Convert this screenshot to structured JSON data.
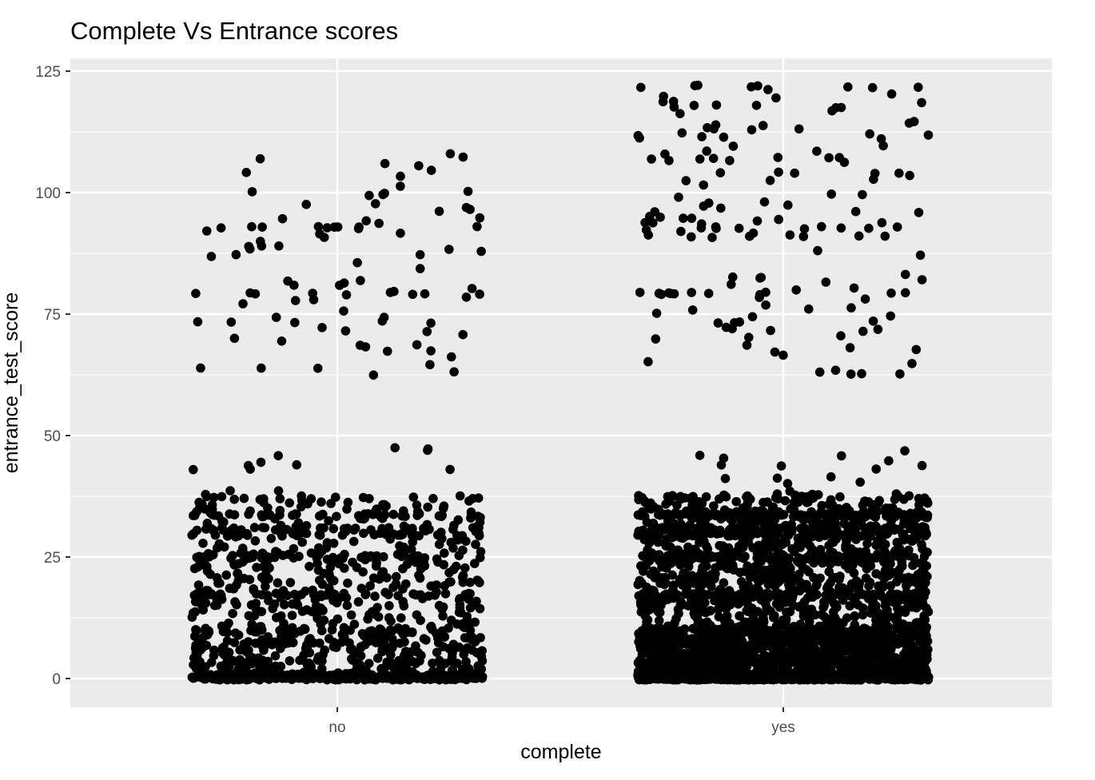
{
  "chart_data": {
    "type": "scatter",
    "title": "Complete Vs Entrance scores",
    "xlabel": "complete",
    "ylabel": "entrance_test_score",
    "categories": [
      "no",
      "yes"
    ],
    "y_ticks": [
      "0",
      "25",
      "50",
      "75",
      "100",
      "125"
    ],
    "ylim": [
      -6,
      127.5
    ],
    "jitter_width": 0.4,
    "grid": true,
    "legend": "none",
    "point_color": "#000000",
    "panel_color": "#ebebeb",
    "grid_color": "#ffffff",
    "series": [
      {
        "category": "no",
        "approx_count": 1400,
        "value_bands": [
          {
            "range": [
              0,
              10.5
            ],
            "approx_count": 720
          },
          {
            "range": [
              10.5,
              38
            ],
            "approx_count": 560
          },
          {
            "range": [
              38,
              48
            ],
            "approx_count": 12
          },
          {
            "range": [
              62,
              108
            ],
            "approx_count": 95
          }
        ],
        "repeated_values": [
          0,
          17.2,
          25,
          29.6,
          30.8,
          33.6,
          73.3,
          79.2,
          92.8
        ]
      },
      {
        "category": "yes",
        "approx_count": 3800,
        "value_bands": [
          {
            "range": [
              0,
              10.5
            ],
            "approx_count": 2300
          },
          {
            "range": [
              10.5,
              38
            ],
            "approx_count": 1350
          },
          {
            "range": [
              38,
              48
            ],
            "approx_count": 15
          },
          {
            "range": [
              62,
              122
            ],
            "approx_count": 160
          }
        ],
        "repeated_values": [
          0,
          17.2,
          25,
          29.6,
          30.8,
          33.6,
          62.8,
          73.3,
          79.2,
          91,
          92.8,
          103.8,
          107.2,
          121.8
        ]
      }
    ]
  }
}
